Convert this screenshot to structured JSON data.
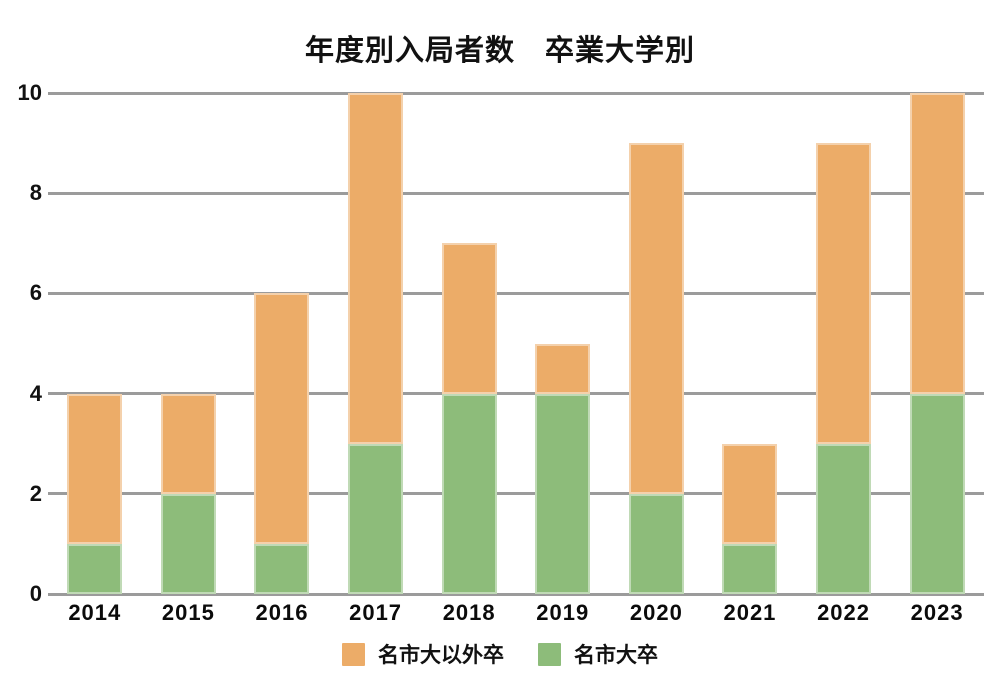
{
  "title": "年度別入局者数　卒業大学別",
  "colors": {
    "background": "#FFFFFF",
    "gridline": "#9B9B9B",
    "text": "#111111",
    "series_other": "#ECAC68",
    "series_ncu": "#8DBC7A"
  },
  "chart_data": {
    "type": "bar",
    "stacked": true,
    "title": "年度別入局者数　卒業大学別",
    "xlabel": "",
    "ylabel": "",
    "categories": [
      "2014",
      "2015",
      "2016",
      "2017",
      "2018",
      "2019",
      "2020",
      "2021",
      "2022",
      "2023"
    ],
    "series": [
      {
        "name": "名市大以外卒",
        "color": "#ECAC68",
        "stack_position": "top",
        "values": [
          3,
          2,
          5,
          7,
          3,
          1,
          7,
          2,
          6,
          6
        ]
      },
      {
        "name": "名市大卒",
        "color": "#8DBC7A",
        "stack_position": "bottom",
        "values": [
          1,
          2,
          1,
          3,
          4,
          4,
          2,
          1,
          3,
          4
        ]
      }
    ],
    "totals": [
      4,
      4,
      6,
      10,
      7,
      5,
      9,
      3,
      9,
      10
    ],
    "ylim": [
      0,
      10
    ],
    "yticks": [
      0,
      2,
      4,
      6,
      8,
      10
    ],
    "grid": true,
    "gridline_color": "#9B9B9B",
    "legend_position": "bottom"
  },
  "legend": {
    "items": [
      {
        "label": "名市大以外卒",
        "color": "#ECAC68"
      },
      {
        "label": "名市大卒",
        "color": "#8DBC7A"
      }
    ]
  }
}
